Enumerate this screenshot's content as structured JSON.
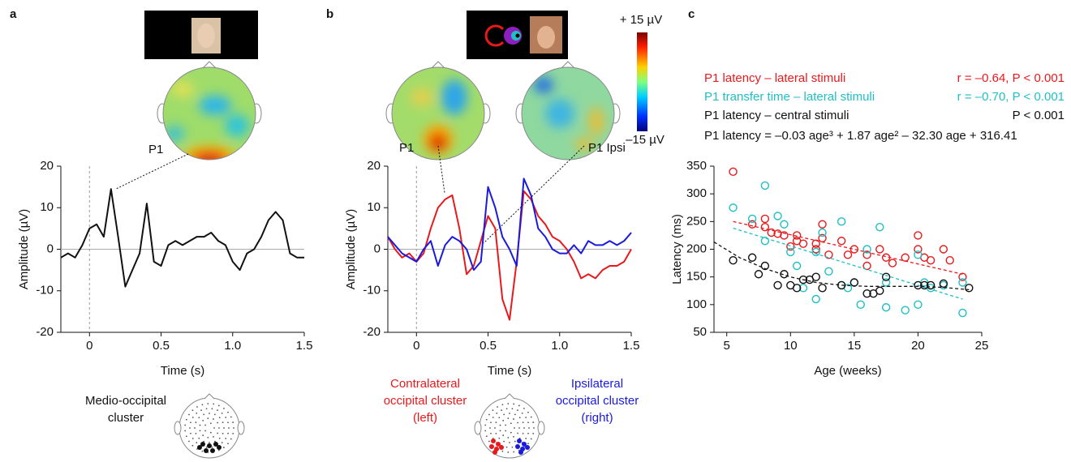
{
  "chart_data": [
    {
      "type": "line",
      "panel": "a",
      "x_label": "Time (s)",
      "y_label": "Amplitude (µV)",
      "xlim": [
        -0.2,
        1.5
      ],
      "ylim": [
        -20,
        20
      ],
      "xticks": [
        0,
        0.5,
        {
          "value": 1,
          "label": "1.0"
        },
        1.5
      ],
      "yticks": [
        -20,
        -10,
        0,
        10,
        20
      ],
      "annotations": [
        "P1"
      ],
      "x": [
        -0.2,
        -0.15,
        -0.1,
        -0.05,
        0,
        0.05,
        0.1,
        0.15,
        0.2,
        0.25,
        0.3,
        0.35,
        0.4,
        0.45,
        0.5,
        0.55,
        0.6,
        0.65,
        0.7,
        0.75,
        0.8,
        0.85,
        0.9,
        0.95,
        1.0,
        1.05,
        1.1,
        1.15,
        1.2,
        1.25,
        1.3,
        1.35,
        1.4,
        1.45,
        1.5
      ],
      "series": [
        {
          "name": "Medio-occipital cluster",
          "color": "#111111",
          "values": [
            -2,
            -1,
            -2,
            1,
            5,
            6,
            3,
            14.5,
            3,
            -9,
            -5,
            -1,
            11,
            -3,
            -4,
            1,
            2,
            1,
            2,
            3,
            3,
            4,
            2,
            1,
            -3,
            -5,
            -1,
            0,
            3,
            7,
            9,
            7,
            -1,
            -2,
            -2
          ]
        }
      ]
    },
    {
      "type": "line",
      "panel": "b",
      "x_label": "Time (s)",
      "y_label": "Amplitude (µV)",
      "xlim": [
        -0.2,
        1.5
      ],
      "ylim": [
        -20,
        20
      ],
      "xticks": [
        0,
        0.5,
        {
          "value": 1,
          "label": "1.0"
        },
        1.5
      ],
      "yticks": [
        -20,
        -10,
        0,
        10,
        20
      ],
      "annotations": [
        "P1",
        "P1 Ipsi"
      ],
      "colorbar_labels": [
        "+ 15 µV",
        "–15 µV"
      ],
      "x": [
        -0.2,
        -0.15,
        -0.1,
        -0.05,
        0,
        0.05,
        0.1,
        0.15,
        0.2,
        0.25,
        0.3,
        0.35,
        0.4,
        0.45,
        0.5,
        0.55,
        0.6,
        0.65,
        0.7,
        0.75,
        0.8,
        0.85,
        0.9,
        0.95,
        1.0,
        1.05,
        1.1,
        1.15,
        1.2,
        1.25,
        1.3,
        1.35,
        1.4,
        1.45,
        1.5
      ],
      "series": [
        {
          "name": "Contralateral occipital cluster (left)",
          "color": "#e8191c",
          "values": [
            3,
            0,
            -2,
            -1,
            -3,
            -1,
            5,
            10,
            12,
            13,
            5,
            -6,
            -4,
            2,
            8,
            5,
            -12,
            -17,
            -3,
            14,
            12,
            8,
            6,
            3,
            2,
            0,
            -3,
            -7,
            -6,
            -7,
            -5,
            -4,
            -4,
            -3,
            0
          ]
        },
        {
          "name": "Ipsilateral occipital cluster (right)",
          "color": "#1a1adf",
          "values": [
            3,
            1,
            -1,
            -2,
            -3,
            0,
            2,
            -4,
            1,
            3,
            2,
            0,
            -5,
            -3,
            15,
            10,
            3,
            0,
            -4,
            17,
            13,
            5,
            3,
            0,
            -1,
            -1,
            1,
            -1,
            2,
            1,
            1,
            2,
            1,
            2,
            4
          ]
        }
      ]
    },
    {
      "type": "scatter",
      "panel": "c",
      "x_label": "Age (weeks)",
      "y_label": "Latency (ms)",
      "xlim": [
        4,
        25
      ],
      "ylim": [
        50,
        350
      ],
      "xticks": [
        5,
        10,
        15,
        20,
        25
      ],
      "yticks": [
        50,
        100,
        150,
        200,
        250,
        300,
        350
      ],
      "annotations": [
        "P1 latency = –0.03 age³ + 1.87 age² – 32.30 age + 316.41"
      ],
      "series": [
        {
          "name": "P1 latency – lateral stimuli",
          "stat": "r = –0.64, P < 0.001",
          "color": "#e8191c",
          "x": [
            5.5,
            7,
            8,
            8,
            8.5,
            9,
            9.5,
            10,
            10.5,
            10.5,
            11,
            12,
            12,
            12.5,
            12.5,
            13,
            14,
            14.5,
            15,
            16,
            16,
            17,
            17.5,
            18,
            19,
            20,
            20,
            20.5,
            21,
            22,
            22.5,
            23.5
          ],
          "values": [
            340,
            245,
            255,
            240,
            230,
            228,
            225,
            205,
            215,
            225,
            210,
            200,
            210,
            245,
            220,
            190,
            215,
            190,
            200,
            190,
            170,
            200,
            185,
            175,
            185,
            225,
            200,
            185,
            180,
            200,
            180,
            150
          ],
          "fit": {
            "x": [
              5.5,
              23.5
            ],
            "y": [
              250,
              155
            ]
          }
        },
        {
          "name": "P1 transfer time – lateral stimuli",
          "stat": "r = –0.70, P < 0.001",
          "color": "#1fbfc4",
          "x": [
            5.5,
            7,
            8,
            8,
            9,
            9.5,
            10,
            10.5,
            11,
            12,
            12,
            12.5,
            13,
            14,
            14,
            14.5,
            15,
            15.5,
            16,
            17,
            17.5,
            17.5,
            19,
            20,
            20,
            20.5,
            21,
            22,
            23.5,
            23.5
          ],
          "values": [
            275,
            255,
            315,
            215,
            260,
            245,
            195,
            170,
            130,
            195,
            110,
            230,
            160,
            250,
            135,
            130,
            140,
            100,
            200,
            240,
            95,
            140,
            90,
            190,
            100,
            140,
            130,
            135,
            140,
            85
          ],
          "fit": {
            "x": [
              5.5,
              23.5
            ],
            "y": [
              238,
              110
            ]
          }
        },
        {
          "name": "P1 latency – central stimuli",
          "stat": "P < 0.001",
          "color": "#111111",
          "x": [
            5.5,
            7,
            7.5,
            8,
            9,
            9.5,
            10,
            10.5,
            11,
            11.5,
            12,
            12.5,
            14,
            15,
            16,
            16.5,
            17,
            17.5,
            20,
            20.5,
            21,
            22,
            24
          ],
          "values": [
            180,
            185,
            155,
            170,
            135,
            155,
            135,
            130,
            145,
            145,
            150,
            130,
            135,
            140,
            120,
            120,
            125,
            150,
            135,
            135,
            135,
            138,
            130
          ],
          "fit": {
            "x": [
              4,
              6,
              8,
              10,
              12,
              14,
              16,
              18,
              20,
              22,
              24
            ],
            "y": [
              213,
              185,
              165,
              150,
              140,
              135,
              133,
              133,
              133,
              131,
              127
            ]
          }
        }
      ]
    }
  ]
}
